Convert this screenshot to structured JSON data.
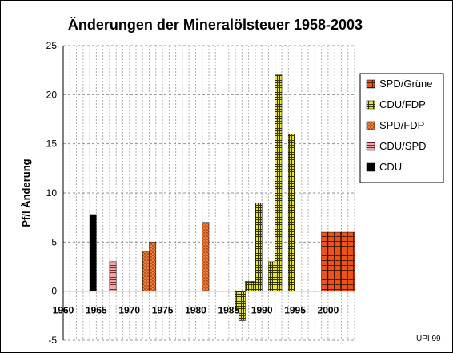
{
  "chart_data": {
    "type": "bar",
    "title": "Änderungen der Mineralölsteuer 1958-2003",
    "ylabel": "Pf/l Änderung",
    "xlim": [
      1960,
      2004
    ],
    "ylim": [
      -5,
      25
    ],
    "x_ticks": [
      1960,
      1965,
      1970,
      1975,
      1980,
      1985,
      1990,
      1995,
      2000
    ],
    "y_ticks": [
      -5,
      0,
      5,
      10,
      15,
      20,
      25
    ],
    "grid": true,
    "legend_position": "right",
    "credit": "UPI 99",
    "series": [
      {
        "name": "SPD/Grüne",
        "color": "#e8541a",
        "pattern": "brick",
        "points": [
          {
            "x": 1999,
            "y": 6
          },
          {
            "x": 2000,
            "y": 6
          },
          {
            "x": 2001,
            "y": 6
          },
          {
            "x": 2002,
            "y": 6
          },
          {
            "x": 2003,
            "y": 6
          }
        ]
      },
      {
        "name": "CDU/FDP",
        "color": "#e6e632",
        "pattern": "grid",
        "points": [
          {
            "x": 1986,
            "y": -2
          },
          {
            "x": 1986.5,
            "y": -3
          },
          {
            "x": 1987.5,
            "y": 1
          },
          {
            "x": 1988.5,
            "y": 1
          },
          {
            "x": 1989,
            "y": 9
          },
          {
            "x": 1991,
            "y": 3
          },
          {
            "x": 1992,
            "y": 22
          },
          {
            "x": 1994,
            "y": 16
          }
        ]
      },
      {
        "name": "SPD/FDP",
        "color": "#f28a4a",
        "pattern": "cross",
        "points": [
          {
            "x": 1972,
            "y": 4
          },
          {
            "x": 1973,
            "y": 5
          },
          {
            "x": 1981,
            "y": 7
          }
        ]
      },
      {
        "name": "CDU/SPD",
        "color": "#f4a6a6",
        "pattern": "hstripe",
        "points": [
          {
            "x": 1967,
            "y": 3
          }
        ]
      },
      {
        "name": "CDU",
        "color": "#000000",
        "pattern": "solid",
        "points": [
          {
            "x": 1964,
            "y": 7.8
          }
        ]
      }
    ]
  }
}
